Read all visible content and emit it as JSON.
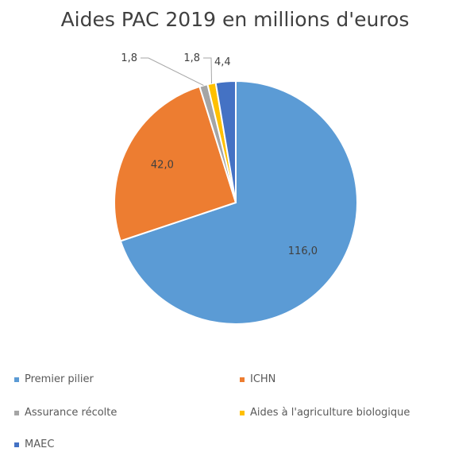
{
  "chart_data": {
    "type": "pie",
    "title": "Aides PAC 2019 en millions d'euros",
    "labels": [
      "Premier pilier",
      "ICHN",
      "Assurance récolte",
      "Aides à l'agriculture biologique",
      "MAEC"
    ],
    "values": [
      116.0,
      42.0,
      1.8,
      1.8,
      4.4
    ],
    "data_labels": [
      "116,0",
      "42,0",
      "1,8",
      "1,8",
      "4,4"
    ],
    "colors": [
      "#5B9BD5",
      "#ED7D31",
      "#A5A5A5",
      "#FFC000",
      "#4472C4"
    ],
    "legend_position": "bottom"
  }
}
